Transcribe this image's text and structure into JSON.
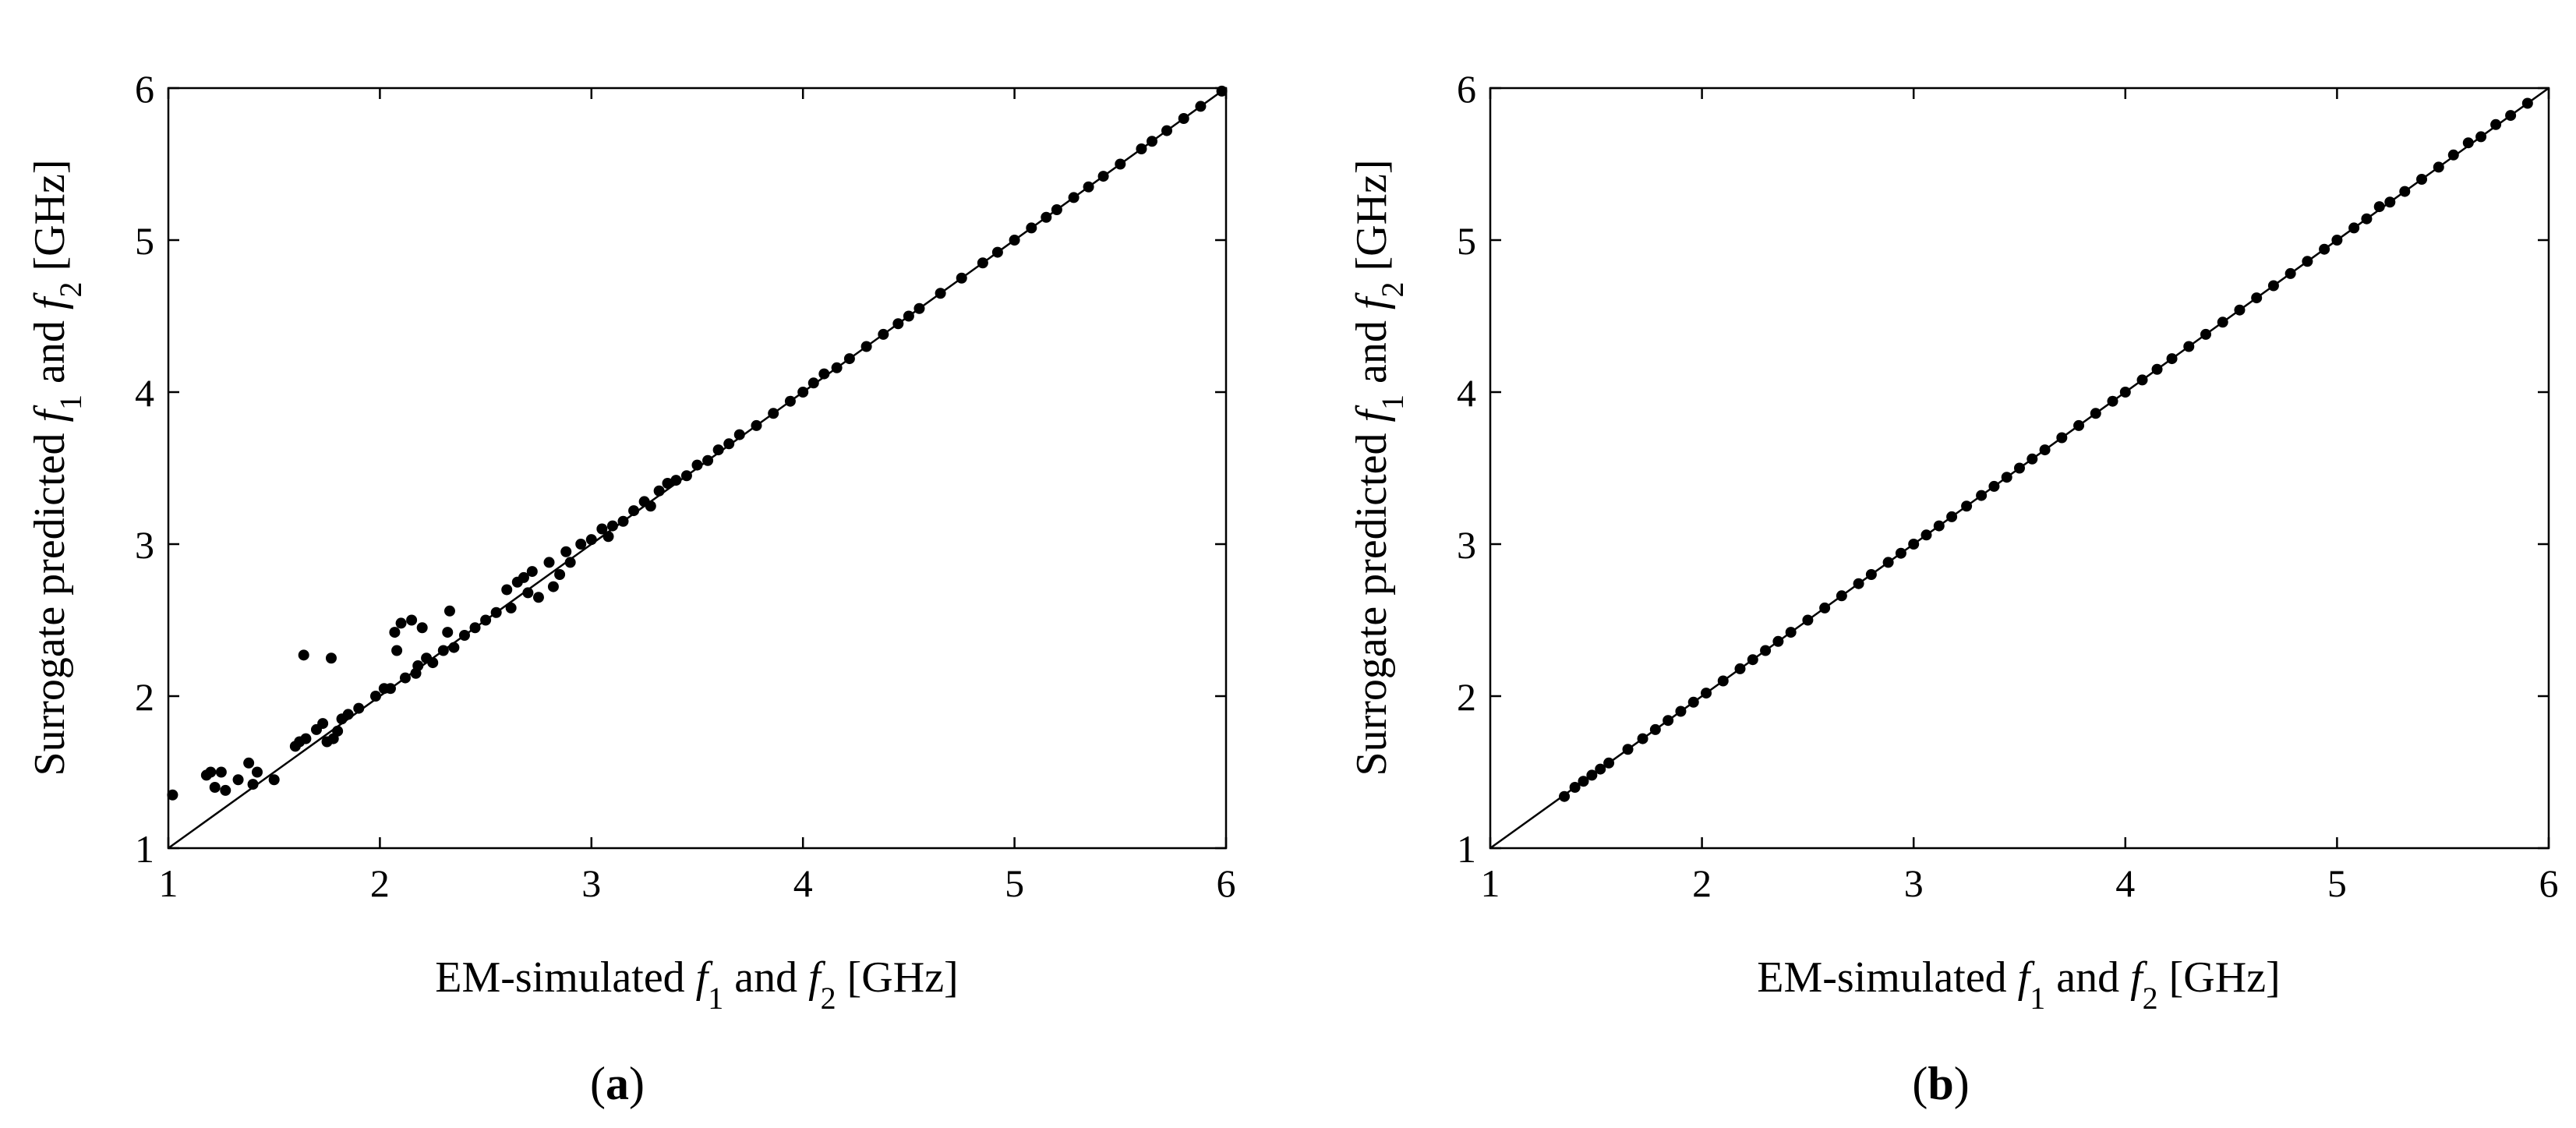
{
  "chart_data": [
    {
      "type": "scatter",
      "panel_label": "a",
      "xlabel": {
        "prefix": "EM-simulated ",
        "f": "f",
        "sub1": "1",
        "mid": "  and ",
        "sub2": "2",
        "unit": "  [GHz]"
      },
      "ylabel": {
        "prefix": "Surrogate predicted ",
        "f": "f",
        "sub1": "1",
        "mid": "  and ",
        "sub2": "2",
        "unit": "  [GHz]"
      },
      "xlim": [
        1,
        6
      ],
      "ylim": [
        1,
        6
      ],
      "x_ticks": [
        "1",
        "2",
        "3",
        "4",
        "5",
        "6"
      ],
      "y_ticks": [
        "1",
        "2",
        "3",
        "4",
        "5",
        "6"
      ],
      "grid": false,
      "reference_line": {
        "from": [
          1,
          1
        ],
        "to": [
          6,
          6
        ]
      },
      "x": [
        1.02,
        1.18,
        1.2,
        1.22,
        1.25,
        1.27,
        1.33,
        1.38,
        1.4,
        1.42,
        1.5,
        1.6,
        1.62,
        1.64,
        1.65,
        1.7,
        1.73,
        1.75,
        1.77,
        1.78,
        1.8,
        1.82,
        1.85,
        1.9,
        1.98,
        2.02,
        2.05,
        2.07,
        2.08,
        2.1,
        2.12,
        2.15,
        2.17,
        2.18,
        2.2,
        2.22,
        2.25,
        2.3,
        2.32,
        2.33,
        2.35,
        2.4,
        2.45,
        2.5,
        2.55,
        2.6,
        2.62,
        2.65,
        2.68,
        2.7,
        2.72,
        2.75,
        2.8,
        2.82,
        2.85,
        2.88,
        2.9,
        2.95,
        3.0,
        3.05,
        3.08,
        3.1,
        3.15,
        3.2,
        3.25,
        3.28,
        3.32,
        3.36,
        3.4,
        3.45,
        3.5,
        3.55,
        3.6,
        3.65,
        3.7,
        3.78,
        3.86,
        3.94,
        4.0,
        4.05,
        4.1,
        4.16,
        4.22,
        4.3,
        4.38,
        4.45,
        4.5,
        4.55,
        4.65,
        4.75,
        4.85,
        4.92,
        5.0,
        5.08,
        5.15,
        5.2,
        5.28,
        5.35,
        5.42,
        5.5,
        5.6,
        5.65,
        5.72,
        5.8,
        5.88,
        5.98
      ],
      "y": [
        1.35,
        1.48,
        1.5,
        1.4,
        1.5,
        1.38,
        1.45,
        1.56,
        1.42,
        1.5,
        1.45,
        1.67,
        1.7,
        2.27,
        1.72,
        1.78,
        1.82,
        1.7,
        2.25,
        1.72,
        1.77,
        1.85,
        1.88,
        1.92,
        2.0,
        2.05,
        2.05,
        2.42,
        2.3,
        2.48,
        2.12,
        2.5,
        2.15,
        2.2,
        2.45,
        2.25,
        2.22,
        2.3,
        2.42,
        2.56,
        2.32,
        2.4,
        2.45,
        2.5,
        2.55,
        2.7,
        2.58,
        2.75,
        2.78,
        2.68,
        2.82,
        2.65,
        2.88,
        2.72,
        2.8,
        2.95,
        2.88,
        3.0,
        3.03,
        3.1,
        3.05,
        3.12,
        3.15,
        3.22,
        3.28,
        3.25,
        3.35,
        3.4,
        3.42,
        3.45,
        3.52,
        3.55,
        3.62,
        3.66,
        3.72,
        3.78,
        3.86,
        3.94,
        4.0,
        4.06,
        4.12,
        4.16,
        4.22,
        4.3,
        4.38,
        4.45,
        4.5,
        4.55,
        4.65,
        4.75,
        4.85,
        4.92,
        5.0,
        5.08,
        5.15,
        5.2,
        5.28,
        5.35,
        5.42,
        5.5,
        5.6,
        5.65,
        5.72,
        5.8,
        5.88,
        5.98
      ]
    },
    {
      "type": "scatter",
      "panel_label": "b",
      "xlabel": {
        "prefix": "EM-simulated ",
        "f": "f",
        "sub1": "1",
        "mid": "  and ",
        "sub2": "2",
        "unit": "  [GHz]"
      },
      "ylabel": {
        "prefix": "Surrogate predicted ",
        "f": "f",
        "sub1": "1",
        "mid": "  and ",
        "sub2": "2",
        "unit": "  [GHz]"
      },
      "xlim": [
        1,
        6
      ],
      "ylim": [
        1,
        6
      ],
      "x_ticks": [
        "1",
        "2",
        "3",
        "4",
        "5",
        "6"
      ],
      "y_ticks": [
        "1",
        "2",
        "3",
        "4",
        "5",
        "6"
      ],
      "grid": false,
      "reference_line": {
        "from": [
          1,
          1
        ],
        "to": [
          6,
          6
        ]
      },
      "x": [
        1.35,
        1.4,
        1.44,
        1.48,
        1.52,
        1.56,
        1.65,
        1.72,
        1.78,
        1.84,
        1.9,
        1.96,
        2.02,
        2.1,
        2.18,
        2.24,
        2.3,
        2.36,
        2.42,
        2.5,
        2.58,
        2.66,
        2.74,
        2.8,
        2.88,
        2.94,
        3.0,
        3.06,
        3.12,
        3.18,
        3.25,
        3.32,
        3.38,
        3.44,
        3.5,
        3.56,
        3.62,
        3.7,
        3.78,
        3.86,
        3.94,
        4.0,
        4.08,
        4.15,
        4.22,
        4.3,
        4.38,
        4.46,
        4.54,
        4.62,
        4.7,
        4.78,
        4.86,
        4.94,
        5.0,
        5.08,
        5.14,
        5.2,
        5.25,
        5.32,
        5.4,
        5.48,
        5.55,
        5.62,
        5.68,
        5.75,
        5.82,
        5.9
      ],
      "y": [
        1.34,
        1.4,
        1.44,
        1.48,
        1.52,
        1.56,
        1.65,
        1.72,
        1.78,
        1.84,
        1.9,
        1.96,
        2.02,
        2.1,
        2.18,
        2.24,
        2.3,
        2.36,
        2.42,
        2.5,
        2.58,
        2.66,
        2.74,
        2.8,
        2.88,
        2.94,
        3.0,
        3.06,
        3.12,
        3.18,
        3.25,
        3.32,
        3.38,
        3.44,
        3.5,
        3.56,
        3.62,
        3.7,
        3.78,
        3.86,
        3.94,
        4.0,
        4.08,
        4.15,
        4.22,
        4.3,
        4.38,
        4.46,
        4.54,
        4.62,
        4.7,
        4.78,
        4.86,
        4.94,
        5.0,
        5.08,
        5.14,
        5.22,
        5.25,
        5.32,
        5.4,
        5.48,
        5.56,
        5.64,
        5.68,
        5.76,
        5.82,
        5.9
      ]
    }
  ]
}
